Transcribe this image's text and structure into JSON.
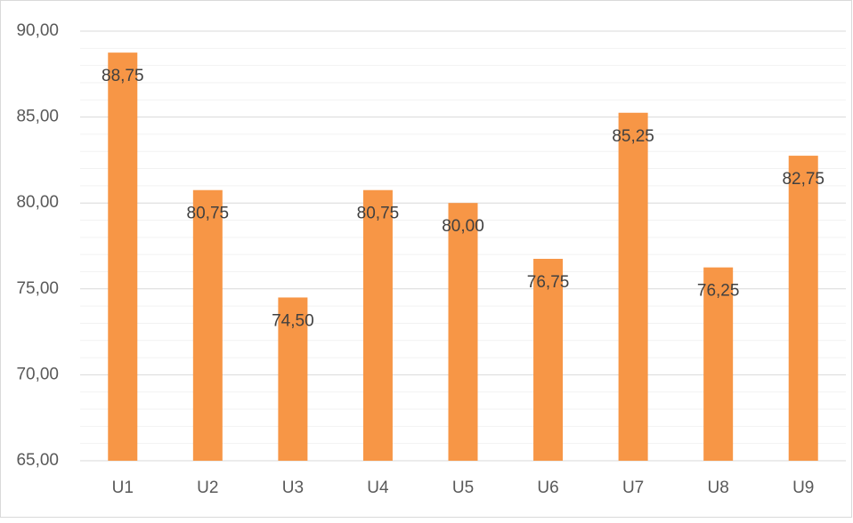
{
  "chart_data": {
    "type": "bar",
    "categories": [
      "U1",
      "U2",
      "U3",
      "U4",
      "U5",
      "U6",
      "U7",
      "U8",
      "U9"
    ],
    "values": [
      88.75,
      80.75,
      74.5,
      80.75,
      80,
      76.75,
      85.25,
      76.25,
      82.75
    ],
    "value_labels": [
      "88,75",
      "80,75",
      "74,50",
      "80,75",
      "80,00",
      "76,75",
      "85,25",
      "76,25",
      "82,75"
    ],
    "color": "#f79646",
    "ylim": [
      65,
      90
    ],
    "yticks": [
      {
        "value": 65,
        "label": "65,00"
      },
      {
        "value": 70,
        "label": "70,00"
      },
      {
        "value": 75,
        "label": "75,00"
      },
      {
        "value": 80,
        "label": "80,00"
      },
      {
        "value": 85,
        "label": "85,00"
      },
      {
        "value": 90,
        "label": "90,00"
      }
    ],
    "minor_yticks": [
      66,
      67,
      68,
      69,
      71,
      72,
      73,
      74,
      76,
      77,
      78,
      79,
      81,
      82,
      83,
      84,
      86,
      87,
      88,
      89
    ],
    "grid": true
  }
}
